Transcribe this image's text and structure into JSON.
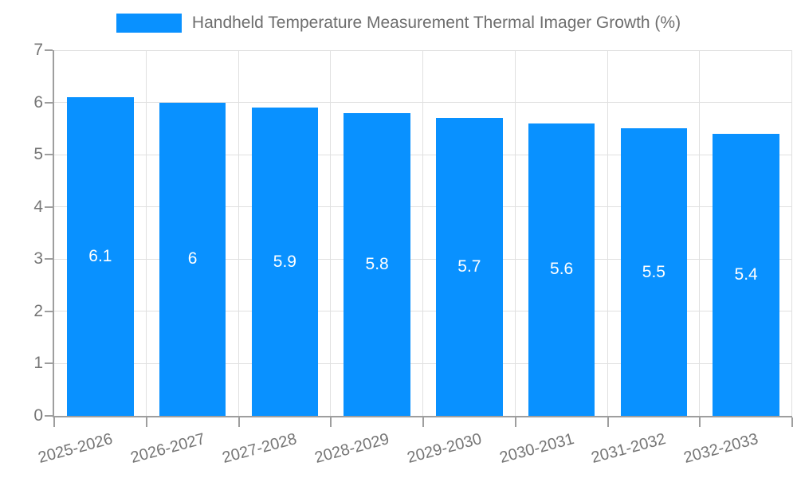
{
  "chart_data": {
    "type": "bar",
    "title": "",
    "categories": [
      "2025-2026",
      "2026-2027",
      "2027-2028",
      "2028-2029",
      "2029-2030",
      "2030-2031",
      "2031-2032",
      "2032-2033"
    ],
    "series": [
      {
        "name": "Handheld Temperature Measurement Thermal Imager Growth (%)",
        "values": [
          6.1,
          6,
          5.9,
          5.8,
          5.7,
          5.6,
          5.5,
          5.4
        ]
      }
    ],
    "bar_value_labels": [
      "6.1",
      "6",
      "5.9",
      "5.8",
      "5.7",
      "5.6",
      "5.5",
      "5.4"
    ],
    "xlabel": "",
    "ylabel": "",
    "ylim": [
      0,
      7
    ],
    "y_ticks": [
      0,
      1,
      2,
      3,
      4,
      5,
      6,
      7
    ],
    "grid": true,
    "legend_position": "top",
    "x_tick_rotation_deg": -15,
    "colors": {
      "bar": "#0991FF",
      "grid": "#E0E0E0",
      "axis": "#9E9E9E",
      "tick_label": "#757575",
      "legend_text": "#6E6E6E",
      "bar_label": "#FFFFFF",
      "background": "#FFFFFF"
    }
  }
}
